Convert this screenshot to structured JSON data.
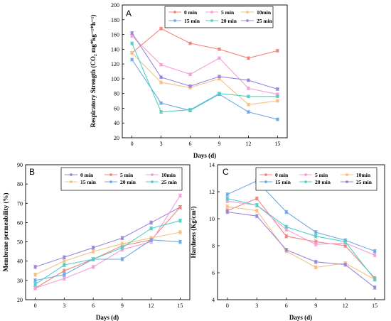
{
  "chart_data": [
    {
      "type": "line",
      "panel_label": "A",
      "xlabel": "Days (d)",
      "ylabel": "Respiratory Strength (CO₂ mg*kg⁻¹*h⁻¹)",
      "x": [
        0,
        3,
        6,
        9,
        12,
        15
      ],
      "xticks": [
        "0",
        "3",
        "6",
        "9",
        "12",
        "15"
      ],
      "ylim": [
        20,
        200
      ],
      "yticks": [
        "20",
        "40",
        "60",
        "80",
        "100",
        "120",
        "140",
        "160",
        "180",
        "200"
      ],
      "legend": "top-right",
      "series": [
        {
          "name": "0 min",
          "color": "#f4847b",
          "marker": "circle",
          "values": [
            135,
            168,
            148,
            140,
            128,
            138
          ]
        },
        {
          "name": "5 min",
          "color": "#f49fd6",
          "marker": "circle",
          "values": [
            158,
            119,
            106,
            128,
            87,
            79
          ]
        },
        {
          "name": "10min",
          "color": "#f7c083",
          "marker": "circle",
          "values": [
            135,
            95,
            88,
            100,
            65,
            70
          ]
        },
        {
          "name": "15 min",
          "color": "#6fa9e6",
          "marker": "circle",
          "values": [
            126,
            67,
            57,
            79,
            55,
            45
          ]
        },
        {
          "name": "20 min",
          "color": "#4fd1c6",
          "marker": "circle",
          "values": [
            148,
            55,
            58,
            80,
            76,
            76
          ]
        },
        {
          "name": "25 min",
          "color": "#9b86d9",
          "marker": "circle",
          "values": [
            162,
            102,
            90,
            103,
            98,
            86
          ]
        }
      ]
    },
    {
      "type": "line",
      "panel_label": "B",
      "xlabel": "Days (d)",
      "ylabel": "Membrane permeability (%)",
      "x": [
        0,
        3,
        6,
        9,
        12,
        15
      ],
      "xticks": [
        "0",
        "3",
        "6",
        "9",
        "12",
        "15"
      ],
      "ylim": [
        20,
        90
      ],
      "yticks": [
        "20",
        "30",
        "40",
        "50",
        "60",
        "70",
        "80",
        "90"
      ],
      "legend": "top-center",
      "series": [
        {
          "name": "0 min",
          "color": "#9b86d9",
          "marker": "circle",
          "values": [
            37,
            42,
            47,
            52,
            60,
            68
          ]
        },
        {
          "name": "5 min",
          "color": "#f4847b",
          "marker": "circle",
          "values": [
            26,
            35,
            41,
            48,
            51,
            68
          ]
        },
        {
          "name": "10min",
          "color": "#f49fd6",
          "marker": "circle",
          "values": [
            26,
            31,
            37,
            46,
            50,
            74
          ]
        },
        {
          "name": "15 min",
          "color": "#f7c083",
          "marker": "circle",
          "values": [
            33,
            40,
            45,
            49,
            52,
            55
          ]
        },
        {
          "name": "20 min",
          "color": "#6fa9e6",
          "marker": "circle",
          "values": [
            30,
            33,
            41,
            41,
            51,
            50
          ]
        },
        {
          "name": "25 min",
          "color": "#4fd1c6",
          "marker": "circle",
          "values": [
            28,
            38,
            41,
            47,
            57,
            61
          ]
        }
      ]
    },
    {
      "type": "line",
      "panel_label": "C",
      "xlabel": "Days (d)",
      "ylabel": "Hardness (Kg/cm²)",
      "x": [
        0,
        3,
        6,
        9,
        12,
        15
      ],
      "xticks": [
        "0",
        "3",
        "6",
        "9",
        "12",
        "15"
      ],
      "ylim": [
        4,
        14
      ],
      "yticks": [
        "4",
        "6",
        "8",
        "10",
        "12",
        "14"
      ],
      "legend": "top-right",
      "series": [
        {
          "name": "0 min",
          "color": "#f4847b",
          "marker": "circle",
          "values": [
            10.6,
            11.5,
            8.7,
            8.3,
            8.0,
            5.6
          ]
        },
        {
          "name": "5 min",
          "color": "#f49fd6",
          "marker": "circle",
          "values": [
            11.3,
            11.0,
            9.2,
            8.1,
            8.2,
            7.3
          ]
        },
        {
          "name": "10min",
          "color": "#f7c083",
          "marker": "circle",
          "values": [
            10.9,
            10.6,
            7.6,
            6.4,
            6.7,
            5.5
          ]
        },
        {
          "name": "15 min",
          "color": "#6fa9e6",
          "marker": "circle",
          "values": [
            11.8,
            12.8,
            10.5,
            9.0,
            8.4,
            7.6
          ]
        },
        {
          "name": "20 min",
          "color": "#4fd1c6",
          "marker": "circle",
          "values": [
            11.5,
            11.0,
            9.4,
            8.7,
            8.3,
            5.5
          ]
        },
        {
          "name": "25 min",
          "color": "#9b86d9",
          "marker": "circle",
          "values": [
            10.5,
            10.2,
            7.7,
            6.8,
            6.6,
            4.9
          ]
        }
      ]
    }
  ]
}
